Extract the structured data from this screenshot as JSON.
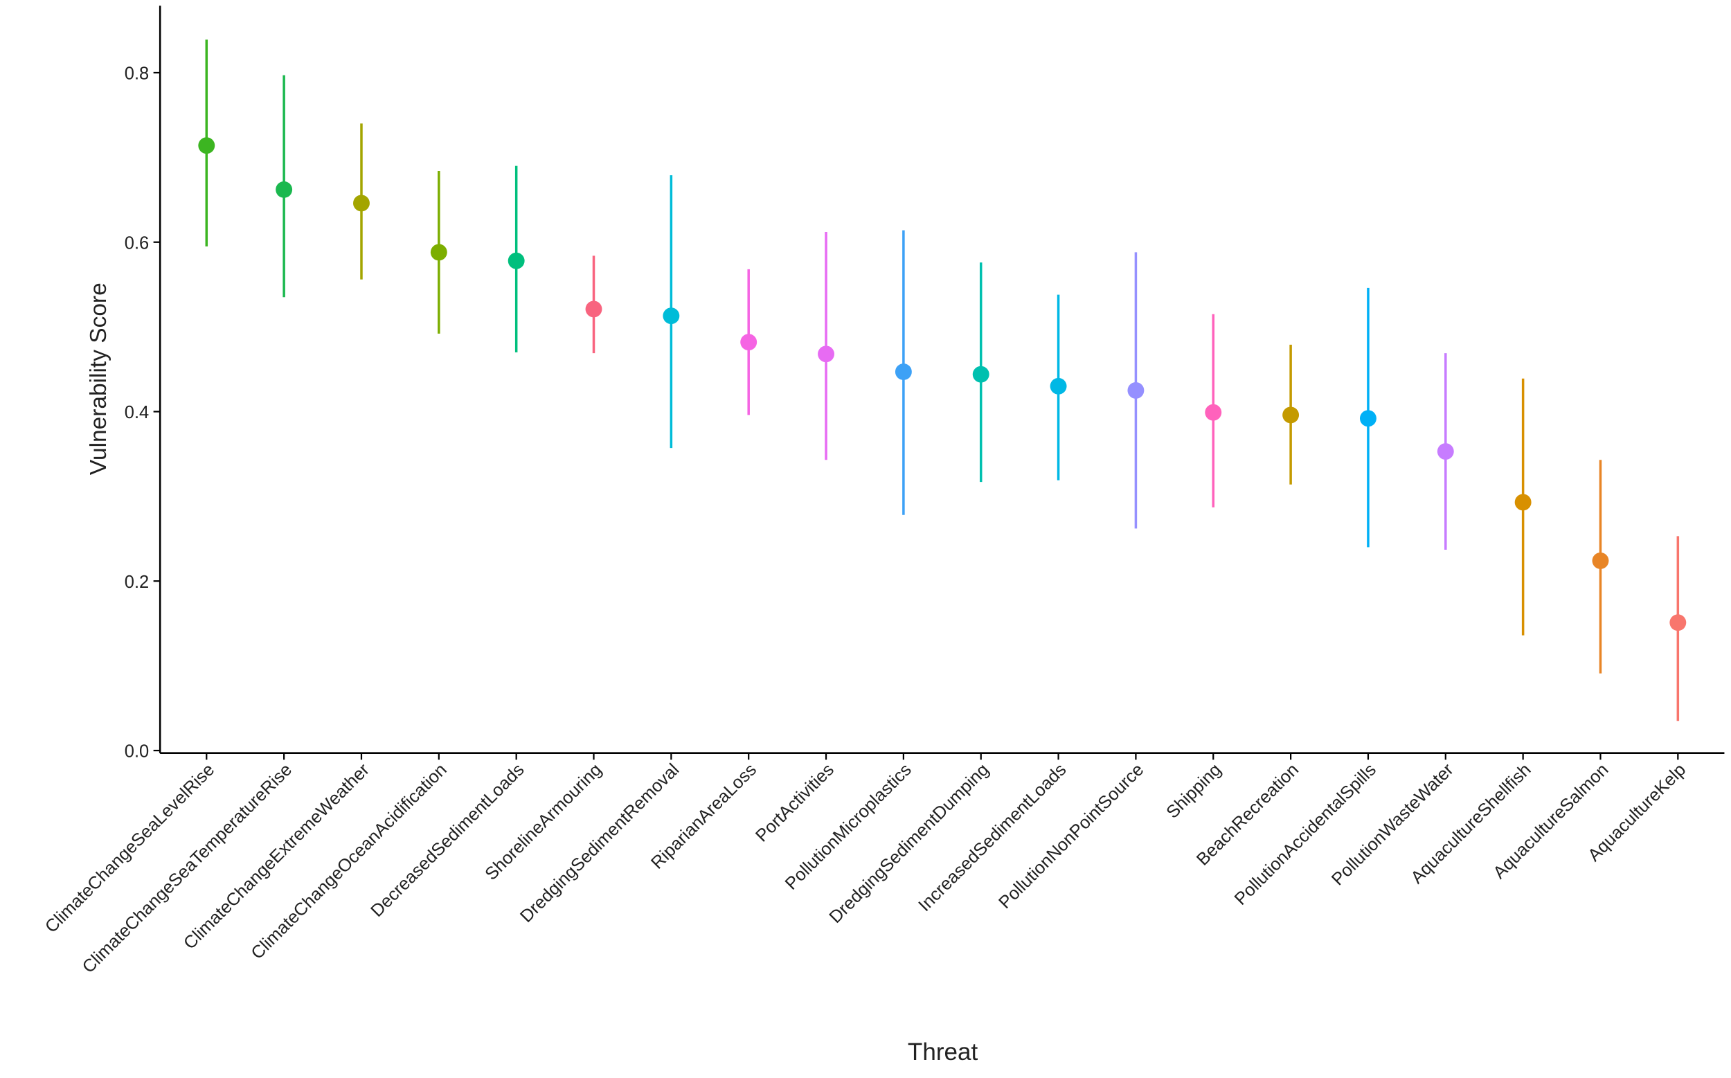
{
  "chart_data": {
    "type": "pointrange",
    "x_label": "Threat",
    "y_label": "Vulnerability Score",
    "categories": [
      "ClimateChangeSeaLevelRise",
      "ClimateChangeSeaTemperatureRise",
      "ClimateChangeExtremeWeather",
      "ClimateChangeOceanAcidification",
      "DecreasedSedimentLoads",
      "ShorelineArmouring",
      "DredgingSedimentRemoval",
      "RiparianAreaLoss",
      "PortActivities",
      "PollutionMicroplastics",
      "DredgingSedimentDumping",
      "IncreasedSedimentLoads",
      "PollutionNonPointSource",
      "Shipping",
      "BeachRecreation",
      "PollutionAccidentalSpills",
      "PollutionWasteWater",
      "AquacultureShellfish",
      "AquacultureSalmon",
      "AquacultureKelp"
    ],
    "values": [
      0.714,
      0.662,
      0.646,
      0.588,
      0.578,
      0.521,
      0.513,
      0.482,
      0.468,
      0.447,
      0.444,
      0.43,
      0.425,
      0.399,
      0.396,
      0.392,
      0.353,
      0.293,
      0.224,
      0.151
    ],
    "lower": [
      0.595,
      0.535,
      0.556,
      0.492,
      0.47,
      0.469,
      0.357,
      0.396,
      0.343,
      0.278,
      0.317,
      0.319,
      0.262,
      0.287,
      0.314,
      0.24,
      0.237,
      0.136,
      0.091,
      0.035
    ],
    "upper": [
      0.839,
      0.797,
      0.74,
      0.684,
      0.69,
      0.584,
      0.679,
      0.568,
      0.612,
      0.614,
      0.576,
      0.538,
      0.588,
      0.515,
      0.479,
      0.546,
      0.469,
      0.439,
      0.343,
      0.253
    ],
    "colors": [
      "#3cb521",
      "#1bb84f",
      "#a3a500",
      "#7cae00",
      "#00bf7d",
      "#f8647f",
      "#00bcd8",
      "#f564e3",
      "#e76bf3",
      "#3da1f6",
      "#00c0af",
      "#00b8e5",
      "#9590ff",
      "#ff62bc",
      "#c49a00",
      "#00b0f6",
      "#c77cff",
      "#d89000",
      "#e88526",
      "#f8766d"
    ],
    "ylim": [
      -0.003,
      0.879
    ],
    "yticks": [
      {
        "value": 0,
        "label": "0.0"
      },
      0.2,
      0.4,
      0.6,
      0.8
    ],
    "grid": false
  }
}
